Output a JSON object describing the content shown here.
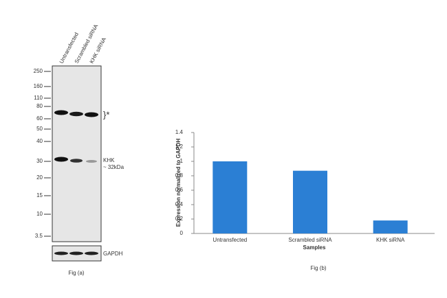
{
  "blot": {
    "lanes": [
      "Untransfected",
      "Scrambled siRNA",
      "KHK siRNA"
    ],
    "markers": [
      "250",
      "160",
      "110",
      "80",
      "60",
      "50",
      "40",
      "30",
      "20",
      "15",
      "10",
      "3.5"
    ],
    "bracket_label": "}*",
    "band_label": "KHK",
    "band_size": "~ 32kDa",
    "loading_control": "GAPDH",
    "caption": "Fig (a)"
  },
  "chart_data": {
    "type": "bar",
    "y_label": "Expression  normalized to GAPDH",
    "x_label": "Samples",
    "caption": "Fig (b)",
    "categories": [
      "Untransfected",
      "Scrambled siRNA",
      "KHK siRNA"
    ],
    "values": [
      1,
      0.87,
      0.18
    ],
    "color": "#2b7fd4",
    "ylim": [
      0,
      1.4
    ],
    "yticks": [
      0,
      0.2,
      0.4,
      0.6,
      0.8,
      1,
      1.2,
      1.4
    ],
    "grid": false
  }
}
